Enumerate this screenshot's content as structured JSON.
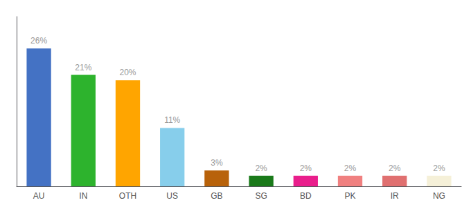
{
  "chart_data": {
    "type": "bar",
    "categories": [
      "AU",
      "IN",
      "OTH",
      "US",
      "GB",
      "SG",
      "BD",
      "PK",
      "IR",
      "NG"
    ],
    "values": [
      26,
      21,
      20,
      11,
      3,
      2,
      2,
      2,
      2,
      2
    ],
    "value_labels": [
      "26%",
      "21%",
      "20%",
      "11%",
      "3%",
      "2%",
      "2%",
      "2%",
      "2%",
      "2%"
    ],
    "colors": [
      "#4472c4",
      "#2db32d",
      "#ffa500",
      "#87ceeb",
      "#b8620a",
      "#1a7a1a",
      "#e91e8c",
      "#f08080",
      "#e07070",
      "#f5f0d8"
    ],
    "ylim": [
      0,
      32
    ],
    "grid": false,
    "tick_labels": "x",
    "data_labels": true
  }
}
